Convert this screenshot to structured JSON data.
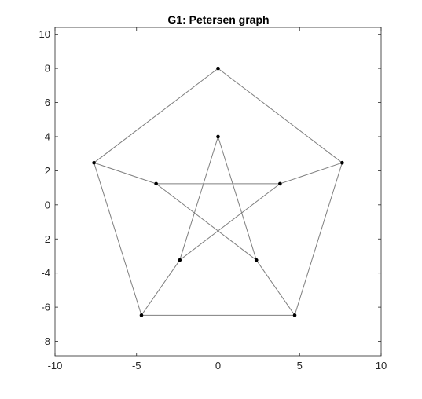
{
  "chart_data": {
    "type": "graph",
    "title": "G1: Petersen graph",
    "xlabel": "",
    "ylabel": "",
    "xlim": [
      -10,
      10
    ],
    "ylim": [
      -8.85,
      10.4
    ],
    "x_ticks": [
      -10,
      -5,
      0,
      5,
      10
    ],
    "y_ticks": [
      -8,
      -6,
      -4,
      -2,
      0,
      2,
      4,
      6,
      8,
      10
    ],
    "x_tick_labels": [
      "-10",
      "-5",
      "0",
      "5",
      "10"
    ],
    "y_tick_labels": [
      "-8",
      "-6",
      "-4",
      "-2",
      "0",
      "2",
      "4",
      "6",
      "8",
      "10"
    ],
    "grid": false,
    "box": true,
    "edge_color": "#7f7f7f",
    "node_color": "#000000",
    "nodes": [
      {
        "id": 1,
        "x": 0,
        "y": 8
      },
      {
        "id": 2,
        "x": 7.61,
        "y": 2.47
      },
      {
        "id": 3,
        "x": 4.7,
        "y": -6.47
      },
      {
        "id": 4,
        "x": -4.7,
        "y": -6.47
      },
      {
        "id": 5,
        "x": -7.61,
        "y": 2.47
      },
      {
        "id": 6,
        "x": 0,
        "y": 4
      },
      {
        "id": 7,
        "x": 3.8,
        "y": 1.24
      },
      {
        "id": 8,
        "x": 2.35,
        "y": -3.24
      },
      {
        "id": 9,
        "x": -2.35,
        "y": -3.24
      },
      {
        "id": 10,
        "x": -3.8,
        "y": 1.24
      }
    ],
    "edges": [
      [
        1,
        2
      ],
      [
        2,
        3
      ],
      [
        3,
        4
      ],
      [
        4,
        5
      ],
      [
        5,
        1
      ],
      [
        1,
        6
      ],
      [
        2,
        7
      ],
      [
        3,
        8
      ],
      [
        4,
        9
      ],
      [
        5,
        10
      ],
      [
        6,
        8
      ],
      [
        8,
        10
      ],
      [
        10,
        7
      ],
      [
        7,
        9
      ],
      [
        9,
        6
      ]
    ]
  }
}
